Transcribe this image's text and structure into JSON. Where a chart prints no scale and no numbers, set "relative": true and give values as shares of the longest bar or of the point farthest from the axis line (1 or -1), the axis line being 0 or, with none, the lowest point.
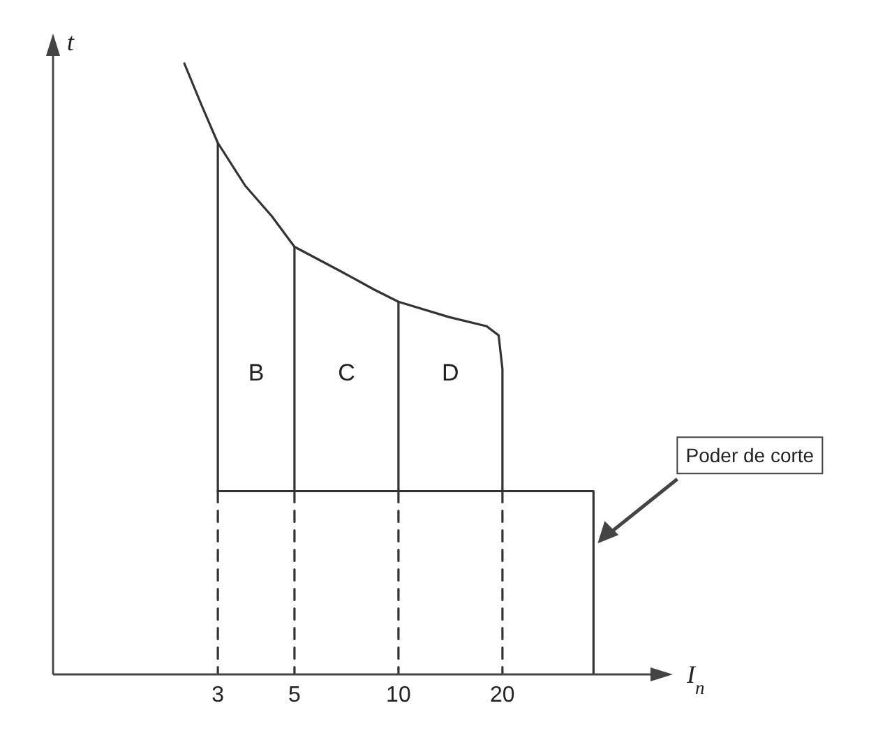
{
  "chart_data": {
    "type": "line",
    "relative": true,
    "xlabel": "I$_{n}$",
    "ylabel": "t",
    "log": "x",
    "xlim": [
      1,
      60
    ],
    "xticks": [
      3,
      5,
      10,
      20
    ],
    "marker": "none",
    "series": [
      {
        "color": "#333333",
        "x": [
          2.4,
          2.7,
          3,
          3.6,
          4.3,
          5,
          6.8,
          8.5,
          10,
          14,
          18,
          19.5,
          20,
          20
        ],
        "values": [
          1,
          0.93,
          0.87,
          0.8,
          0.75,
          0.7,
          0.66,
          0.63,
          0.61,
          0.585,
          0.57,
          0.555,
          0.5,
          0.3
        ]
      },
      {
        "color": "#333333",
        "x": [
          3,
          36.7,
          36.7
        ],
        "values": [
          0.3,
          0.3,
          0
        ]
      },
      {
        "color": "#333333",
        "x": [
          3,
          3
        ],
        "values": [
          0.87,
          0.3
        ]
      },
      {
        "color": "#333333",
        "x": [
          5,
          5
        ],
        "values": [
          0.7,
          0.3
        ]
      },
      {
        "color": "#333333",
        "x": [
          10,
          10
        ],
        "values": [
          0.61,
          0.3
        ]
      },
      {
        "color": "#333333",
        "line_style": "dashed",
        "x": [
          3,
          3
        ],
        "values": [
          0.3,
          0
        ]
      },
      {
        "color": "#333333",
        "line_style": "dashed",
        "x": [
          5,
          5
        ],
        "values": [
          0.3,
          0
        ]
      },
      {
        "color": "#333333",
        "line_style": "dashed",
        "x": [
          10,
          10
        ],
        "values": [
          0.3,
          0
        ]
      },
      {
        "color": "#333333",
        "line_style": "dashed",
        "x": [
          20,
          20
        ],
        "values": [
          0.3,
          0
        ]
      }
    ],
    "annotations": [
      "B",
      "C",
      "D",
      "Poder de corte"
    ]
  }
}
